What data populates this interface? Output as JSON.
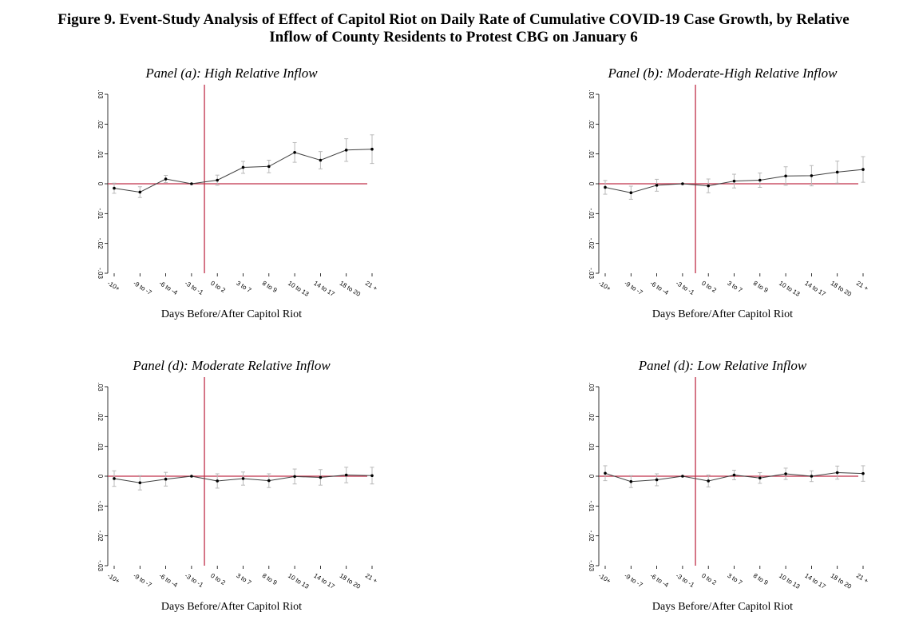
{
  "figure": {
    "title_line1": "Figure 9.  Event-Study Analysis of Effect of Capitol Riot on Daily Rate of Cumulative COVID-19 Case Growth, by Relative",
    "title_line2": "Inflow of County Residents to Protest CBG on January 6"
  },
  "colors": {
    "reference": "#c0304a",
    "series": "#404040",
    "ci": "#b8b8b8"
  },
  "chart_data": [
    {
      "type": "line",
      "title": "Panel (a): High Relative Inflow",
      "xlabel": "Days Before/After Capitol Riot",
      "ylabel": "",
      "categories": [
        "-10+",
        "-9 to -7",
        "-6 to -4",
        "-3 to -1",
        "0 to 2",
        "3 to 7",
        "8 to 9",
        "10 to 13",
        "14 to 17",
        "18 to 20",
        "21 +"
      ],
      "yticks": [
        ".03",
        ".02",
        ".01",
        "0",
        "-.01",
        "-.02",
        "-.03"
      ],
      "ylim": [
        -0.03,
        0.03
      ],
      "event_line_after": "-3 to -1",
      "zero_line": 0,
      "values": [
        -0.0015,
        -0.0028,
        0.0016,
        0.0,
        0.0012,
        0.0055,
        0.0058,
        0.0105,
        0.0079,
        0.0113,
        0.0116
      ],
      "ci_low": [
        -0.0032,
        -0.0046,
        0.0004,
        0.0,
        -0.0005,
        0.0035,
        0.0037,
        0.0072,
        0.005,
        0.0075,
        0.0068
      ],
      "ci_high": [
        0.0002,
        -0.001,
        0.0028,
        0.0,
        0.0029,
        0.0075,
        0.0079,
        0.0138,
        0.0108,
        0.0151,
        0.0164
      ]
    },
    {
      "type": "line",
      "title": "Panel (b): Moderate-High Relative Inflow",
      "xlabel": "Days Before/After Capitol Riot",
      "ylabel": "",
      "categories": [
        "-10+",
        "-9 to -7",
        "-6 to -4",
        "-3 to -1",
        "0 to 2",
        "3 to 7",
        "8 to 9",
        "10 to 13",
        "14 to 17",
        "18 to 20",
        "21 +"
      ],
      "yticks": [
        ".03",
        ".02",
        ".01",
        "0",
        "-.01",
        "-.02",
        "-.03"
      ],
      "ylim": [
        -0.03,
        0.03
      ],
      "event_line_after": "-3 to -1",
      "zero_line": 0,
      "values": [
        -0.0012,
        -0.003,
        -0.0005,
        0.0,
        -0.0007,
        0.0009,
        0.0012,
        0.0026,
        0.0027,
        0.0039,
        0.0048
      ],
      "ci_low": [
        -0.0035,
        -0.0052,
        -0.0025,
        0.0,
        -0.003,
        -0.0014,
        -0.0012,
        -0.0005,
        -0.0007,
        0.0002,
        0.0005
      ],
      "ci_high": [
        0.0011,
        -0.0008,
        0.0015,
        0.0,
        0.0016,
        0.0032,
        0.0036,
        0.0057,
        0.0061,
        0.0076,
        0.0091
      ]
    },
    {
      "type": "line",
      "title": "Panel (d): Moderate Relative Inflow",
      "xlabel": "Days Before/After Capitol Riot",
      "ylabel": "",
      "categories": [
        "-10+",
        "-9 to -7",
        "-6 to -4",
        "-3 to -1",
        "0 to 2",
        "3 to 7",
        "8 to 9",
        "10 to 13",
        "14 to 17",
        "18 to 20",
        "21 +"
      ],
      "yticks": [
        ".03",
        ".02",
        ".01",
        "0",
        "-.01",
        "-.02",
        "-.03"
      ],
      "ylim": [
        -0.03,
        0.03
      ],
      "event_line_after": "-3 to -1",
      "zero_line": 0,
      "values": [
        -0.0008,
        -0.0022,
        -0.001,
        0.0,
        -0.0016,
        -0.0008,
        -0.0015,
        -0.0001,
        -0.0004,
        0.0004,
        0.0002
      ],
      "ci_low": [
        -0.0034,
        -0.0046,
        -0.0033,
        0.0,
        -0.004,
        -0.003,
        -0.0038,
        -0.0026,
        -0.003,
        -0.0022,
        -0.0026
      ],
      "ci_high": [
        0.0018,
        0.0002,
        0.0013,
        0.0,
        0.0008,
        0.0014,
        0.0008,
        0.0024,
        0.0022,
        0.003,
        0.003
      ]
    },
    {
      "type": "line",
      "title": "Panel (d): Low Relative Inflow",
      "xlabel": "Days Before/After Capitol Riot",
      "ylabel": "",
      "categories": [
        "-10+",
        "-9 to -7",
        "-6 to -4",
        "-3 to -1",
        "0 to 2",
        "3 to 7",
        "8 to 9",
        "10 to 13",
        "14 to 17",
        "18 to 20",
        "21 +"
      ],
      "yticks": [
        ".03",
        ".02",
        ".01",
        "0",
        "-.01",
        "-.02",
        "-.03"
      ],
      "ylim": [
        -0.03,
        0.03
      ],
      "event_line_after": "-3 to -1",
      "zero_line": 0,
      "values": [
        0.001,
        -0.0018,
        -0.0012,
        0.0,
        -0.0016,
        0.0004,
        -0.0006,
        0.0008,
        0.0,
        0.0012,
        0.0009
      ],
      "ci_low": [
        -0.0015,
        -0.0038,
        -0.0032,
        0.0,
        -0.0036,
        -0.0012,
        -0.0024,
        -0.0011,
        -0.0018,
        -0.001,
        -0.0017
      ],
      "ci_high": [
        0.0035,
        0.0002,
        0.0008,
        0.0,
        0.0004,
        0.002,
        0.0012,
        0.0027,
        0.0018,
        0.0034,
        0.0035
      ]
    }
  ]
}
